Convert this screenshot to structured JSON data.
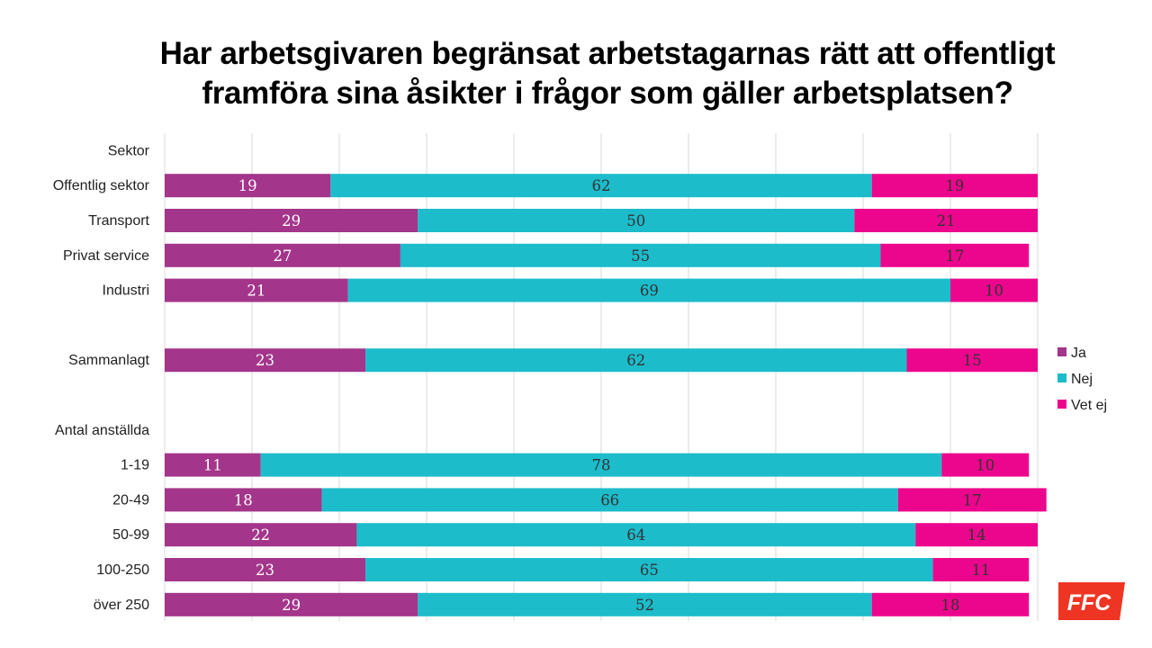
{
  "title_line1": "Har arbetsgivaren begränsat arbetstagarnas rätt att offentligt",
  "title_line2": "framföra sina åsikter i frågor som gäller arbetsplatsen?",
  "logo_text": "FFC",
  "colors": {
    "ja": "#a3358a",
    "nej": "#1cbccb",
    "vet_ej": "#ec068d",
    "logo": "#ee3523",
    "grid": "#d9d9d9"
  },
  "chart_data": {
    "type": "bar",
    "orientation": "horizontal",
    "stacked": true,
    "xlim": [
      0,
      100
    ],
    "grid": true,
    "legend_position": "right",
    "categories": [
      "Sektor",
      "Offentlig sektor",
      "Transport",
      "Privat service",
      "Industri",
      "",
      "Sammanlagt",
      "",
      "Antal anställda",
      "1-19",
      "20-49",
      "50-99",
      "100-250",
      "över 250"
    ],
    "series": [
      {
        "name": "Ja",
        "values": [
          null,
          19,
          29,
          27,
          21,
          null,
          23,
          null,
          null,
          11,
          18,
          22,
          23,
          29
        ]
      },
      {
        "name": "Nej",
        "values": [
          null,
          62,
          50,
          55,
          69,
          null,
          62,
          null,
          null,
          78,
          66,
          64,
          65,
          52
        ]
      },
      {
        "name": "Vet ej",
        "values": [
          null,
          19,
          21,
          17,
          10,
          null,
          15,
          null,
          null,
          10,
          17,
          14,
          11,
          18
        ]
      }
    ]
  }
}
